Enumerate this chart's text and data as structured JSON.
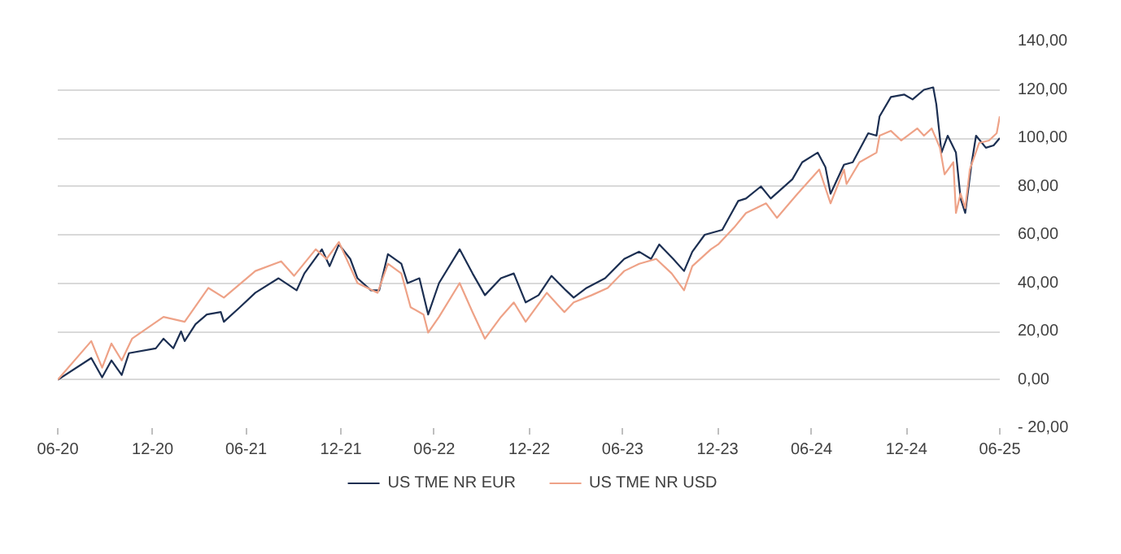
{
  "chart_data": {
    "type": "line",
    "xlim": [
      "2020-06-30",
      "2025-06-30"
    ],
    "xticks": [
      {
        "value": "2020-06-30",
        "label": "06-20"
      },
      {
        "value": "2020-12-31",
        "label": "12-20"
      },
      {
        "value": "2021-06-30",
        "label": "06-21"
      },
      {
        "value": "2021-12-31",
        "label": "12-21"
      },
      {
        "value": "2022-06-30",
        "label": "06-22"
      },
      {
        "value": "2022-12-31",
        "label": "12-22"
      },
      {
        "value": "2023-06-30",
        "label": "06-23"
      },
      {
        "value": "2023-12-31",
        "label": "12-23"
      },
      {
        "value": "2024-06-30",
        "label": "06-24"
      },
      {
        "value": "2024-12-31",
        "label": "12-24"
      },
      {
        "value": "2025-06-30",
        "label": "06-25"
      }
    ],
    "ylim": [
      -20,
      140
    ],
    "yticks": [
      {
        "value": -20,
        "label": "- 20,00"
      },
      {
        "value": 0,
        "label": "0,00"
      },
      {
        "value": 20,
        "label": "20,00"
      },
      {
        "value": 40,
        "label": "40,00"
      },
      {
        "value": 60,
        "label": "60,00"
      },
      {
        "value": 80,
        "label": "80,00"
      },
      {
        "value": 100,
        "label": "100,00"
      },
      {
        "value": 120,
        "label": "120,00"
      },
      {
        "value": 140,
        "label": "140,00"
      }
    ],
    "grid": "y",
    "legend": "bottom",
    "line_style": "solid",
    "series": [
      {
        "name": "US TME NR EUR",
        "color": "#1c2f52",
        "x": [
          "2020-06-30",
          "2020-09-03",
          "2020-09-24",
          "2020-10-12",
          "2020-11-01",
          "2020-11-15",
          "2021-01-06",
          "2021-01-21",
          "2021-02-09",
          "2021-02-24",
          "2021-03-03",
          "2021-03-24",
          "2021-04-15",
          "2021-05-12",
          "2021-05-18",
          "2021-06-18",
          "2021-07-18",
          "2021-09-01",
          "2021-10-06",
          "2021-10-21",
          "2021-11-24",
          "2021-12-09",
          "2021-12-27",
          "2022-01-18",
          "2022-02-01",
          "2022-02-27",
          "2022-03-15",
          "2022-04-01",
          "2022-04-27",
          "2022-05-09",
          "2022-06-01",
          "2022-06-18",
          "2022-07-09",
          "2022-08-18",
          "2022-09-12",
          "2022-10-06",
          "2022-11-06",
          "2022-12-01",
          "2022-12-24",
          "2023-01-18",
          "2023-02-12",
          "2023-03-12",
          "2023-03-27",
          "2023-04-21",
          "2023-05-27",
          "2023-07-03",
          "2023-08-01",
          "2023-08-24",
          "2023-09-09",
          "2023-10-06",
          "2023-10-27",
          "2023-11-12",
          "2023-12-06",
          "2024-01-09",
          "2024-02-09",
          "2024-02-24",
          "2024-03-24",
          "2024-04-12",
          "2024-05-24",
          "2024-06-12",
          "2024-07-12",
          "2024-07-27",
          "2024-08-06",
          "2024-09-01",
          "2024-09-18",
          "2024-10-18",
          "2024-11-03",
          "2024-11-09",
          "2024-12-01",
          "2024-12-27",
          "2025-01-12",
          "2025-02-03",
          "2025-02-21",
          "2025-02-27",
          "2025-03-09",
          "2025-03-21",
          "2025-04-06",
          "2025-04-15",
          "2025-04-24",
          "2025-05-06",
          "2025-05-15",
          "2025-06-03",
          "2025-06-18",
          "2025-06-30"
        ],
        "values": [
          0,
          9,
          1,
          8,
          2,
          11,
          13,
          17,
          13,
          20,
          16,
          23,
          27,
          28,
          24,
          30,
          36,
          42,
          37,
          44,
          54,
          47,
          56,
          50,
          42,
          37,
          37,
          52,
          48,
          40,
          42,
          27,
          40,
          54,
          44,
          35,
          42,
          44,
          32,
          35,
          43,
          37,
          34,
          38,
          42,
          50,
          53,
          50,
          56,
          50,
          45,
          53,
          60,
          62,
          74,
          75,
          80,
          75,
          83,
          90,
          94,
          88,
          77,
          89,
          90,
          102,
          101,
          109,
          117,
          118,
          116,
          120,
          121,
          114,
          94,
          101,
          94,
          75,
          69,
          89,
          101,
          96,
          97,
          100
        ]
      },
      {
        "name": "US TME NR USD",
        "color": "#eea287",
        "x": [
          "2020-06-30",
          "2020-09-03",
          "2020-09-24",
          "2020-10-12",
          "2020-11-01",
          "2020-11-21",
          "2021-01-21",
          "2021-03-03",
          "2021-04-18",
          "2021-05-18",
          "2021-07-18",
          "2021-09-06",
          "2021-10-01",
          "2021-11-12",
          "2021-12-03",
          "2021-12-27",
          "2022-02-01",
          "2022-03-12",
          "2022-04-01",
          "2022-04-27",
          "2022-05-15",
          "2022-06-09",
          "2022-06-18",
          "2022-07-09",
          "2022-08-18",
          "2022-09-12",
          "2022-10-06",
          "2022-11-06",
          "2022-12-01",
          "2022-12-24",
          "2023-02-03",
          "2023-03-09",
          "2023-03-27",
          "2023-05-01",
          "2023-06-01",
          "2023-07-03",
          "2023-08-01",
          "2023-09-03",
          "2023-10-03",
          "2023-10-27",
          "2023-11-12",
          "2023-12-18",
          "2024-01-01",
          "2024-02-01",
          "2024-02-24",
          "2024-04-03",
          "2024-04-24",
          "2024-06-03",
          "2024-07-15",
          "2024-08-06",
          "2024-09-01",
          "2024-09-06",
          "2024-10-01",
          "2024-11-03",
          "2024-11-09",
          "2024-12-01",
          "2024-12-21",
          "2025-01-21",
          "2025-02-03",
          "2025-02-18",
          "2025-03-06",
          "2025-03-15",
          "2025-04-01",
          "2025-04-06",
          "2025-04-15",
          "2025-04-24",
          "2025-05-03",
          "2025-05-21",
          "2025-06-09",
          "2025-06-24",
          "2025-06-30"
        ],
        "values": [
          0,
          16,
          5,
          15,
          8,
          17,
          26,
          24,
          38,
          34,
          45,
          49,
          43,
          54,
          50,
          57,
          40,
          36,
          48,
          44,
          30,
          27,
          19.5,
          26,
          40,
          28,
          17,
          26,
          32,
          24,
          36,
          28,
          32,
          35,
          38,
          45,
          48,
          50,
          44,
          37,
          47,
          54,
          56,
          63,
          69,
          73,
          67,
          77,
          87,
          73,
          87,
          81,
          90,
          94,
          101,
          103,
          99,
          104,
          101,
          104,
          96,
          85,
          90,
          69,
          77,
          71,
          87,
          98,
          99,
          102,
          109
        ]
      }
    ]
  }
}
